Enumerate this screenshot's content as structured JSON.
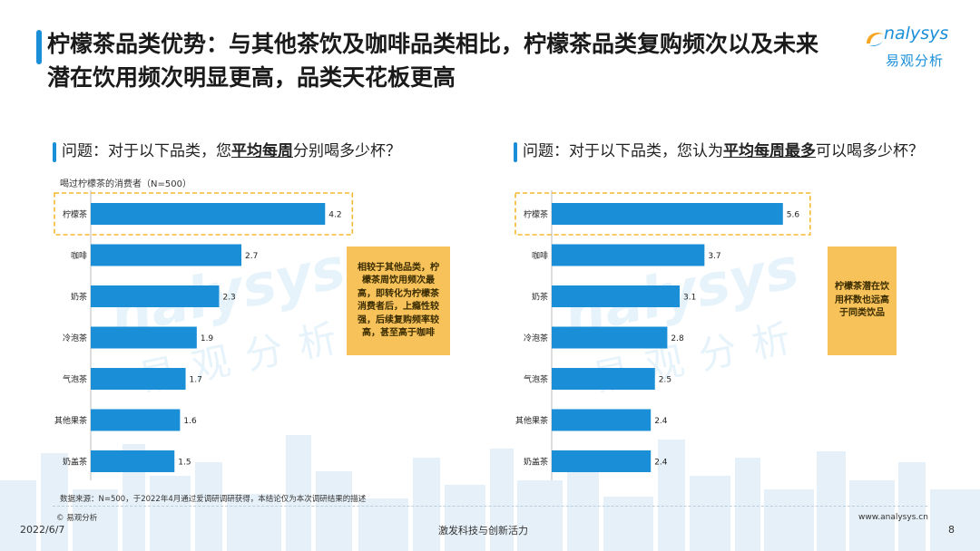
{
  "header": {
    "title": "柠檬茶品类优势：与其他茶饮及咖啡品类相比，柠檬茶品类复购频次以及未来潜在饮用频次明显更高，品类天花板更高",
    "logo_en": "nalysys",
    "logo_cn": "易观分析"
  },
  "left_panel": {
    "question_pre": "问题：对于以下品类，您",
    "question_u": "平均每周",
    "question_post": "分别喝多少杯？",
    "subnote": "喝过柠檬茶的消费者（N=500）",
    "callout": "相较于其他品类，柠檬茶周饮用频次最高，即转化为柠檬茶消费者后，上瘾性较强，后续复购频率较高，甚至高于咖啡"
  },
  "right_panel": {
    "question_pre": "问题：对于以下品类，您认为",
    "question_u": "平均每周最多",
    "question_post": "可以喝多少杯？",
    "callout": "柠檬茶潜在饮用杯数也远高于同类饮品"
  },
  "chart_data": [
    {
      "type": "bar",
      "orientation": "horizontal",
      "categories": [
        "柠檬茶",
        "咖啡",
        "奶茶",
        "冷泡茶",
        "气泡茶",
        "其他果茶",
        "奶盖茶"
      ],
      "values": [
        4.2,
        2.7,
        2.3,
        1.9,
        1.7,
        1.6,
        1.5
      ],
      "color": "#1a8fd8",
      "highlight_category": "柠檬茶"
    },
    {
      "type": "bar",
      "orientation": "horizontal",
      "categories": [
        "柠檬茶",
        "咖啡",
        "奶茶",
        "冷泡茶",
        "气泡茶",
        "其他果茶",
        "奶盖茶"
      ],
      "values": [
        5.6,
        3.7,
        3.1,
        2.8,
        2.5,
        2.4,
        2.4
      ],
      "color": "#1a8fd8",
      "highlight_category": "柠檬茶"
    }
  ],
  "footer": {
    "source": "数据来源：N=500，于2022年4月通过爱调研调研获得，本结论仅为本次调研结果的描述",
    "copyright": "© 易观分析",
    "date": "2022/6/7",
    "slogan": "激发科技与创新活力",
    "url": "www.analysys.cn",
    "page": "8"
  },
  "watermark": {
    "en": "nalysys",
    "cn": "易观分析"
  }
}
